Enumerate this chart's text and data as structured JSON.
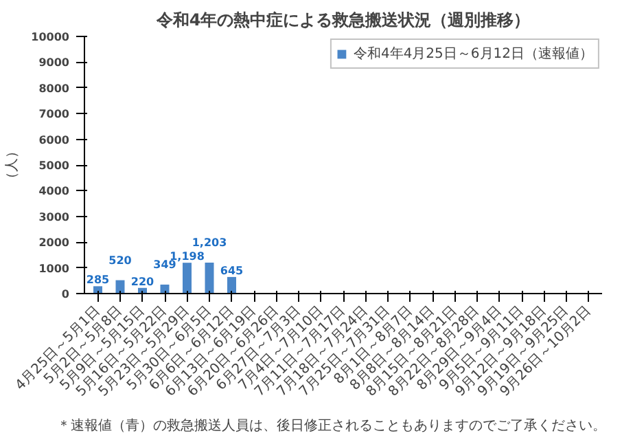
{
  "chart_data": {
    "type": "bar",
    "title": "令和4年の熱中症による救急搬送状況（週別推移）",
    "ylabel": "（人）",
    "categories": [
      "4月25日～5月1日",
      "5月2日～5月8日",
      "5月9日～5月15日",
      "5月16日～5月22日",
      "5月23日～5月29日",
      "5月30日～6月5日",
      "6月6日～6月12日",
      "6月13日～6月19日",
      "6月20日～6月26日",
      "6月27日～7月3日",
      "7月4日～7月10日",
      "7月11日～7月17日",
      "7月18日～7月24日",
      "7月25日～7月31日",
      "8月1日～8月7日",
      "8月8日～8月14日",
      "8月15日～8月21日",
      "8月22日～8月28日",
      "8月29日～9月4日",
      "9月5日～9月11日",
      "9月12日～9月18日",
      "9月19日～9月25日",
      "9月26日～10月2日"
    ],
    "series": [
      {
        "name": "令和4年4月25日～6月12日（速報値）",
        "color": "#4a86c8",
        "values": [
          285,
          520,
          220,
          349,
          1198,
          1203,
          645,
          null,
          null,
          null,
          null,
          null,
          null,
          null,
          null,
          null,
          null,
          null,
          null,
          null,
          null,
          null,
          null
        ]
      }
    ],
    "ylim": [
      0,
      10000
    ],
    "yticks": [
      0,
      1000,
      2000,
      3000,
      4000,
      5000,
      6000,
      7000,
      8000,
      9000,
      10000
    ],
    "value_labels": [
      "285",
      "520",
      "220",
      "349",
      "1,198",
      "1,203",
      "645",
      null,
      null,
      null,
      null,
      null,
      null,
      null,
      null,
      null,
      null,
      null,
      null,
      null,
      null,
      null,
      null
    ],
    "grid": false,
    "legend": "top right",
    "annotations": [
      "＊速報値（青）の救急搬送人員は、後日修正されることもありますのでご了承ください。"
    ]
  }
}
